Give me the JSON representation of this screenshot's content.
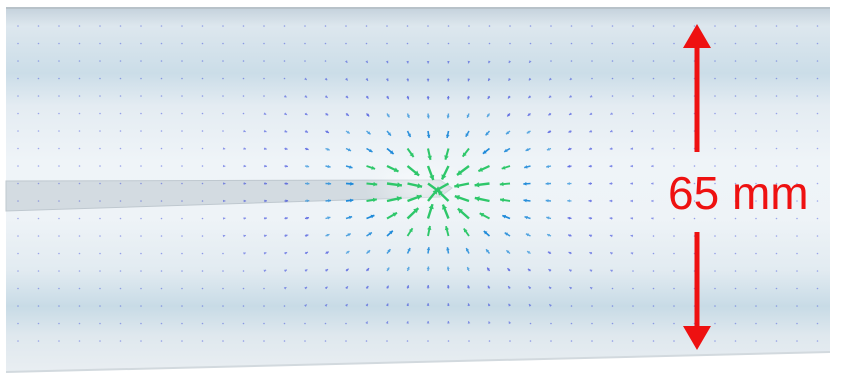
{
  "annotation": {
    "dimension_label": "65 mm",
    "color": "#ee1111"
  },
  "colors": {
    "pipe_light": "#eef3f7",
    "pipe_mid": "#d6e2ea",
    "pipe_band": "#c3d5e0",
    "pipe_edge": "#b9c3ca",
    "needle": "#d3dbe1",
    "vector_low": "#1f2fd9",
    "vector_mid": "#1f8ad9",
    "vector_high": "#2ec76a"
  }
}
